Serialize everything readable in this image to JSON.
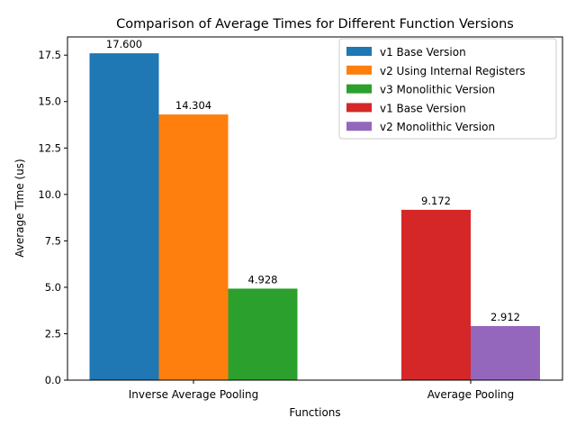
{
  "chart_data": {
    "type": "bar",
    "title": "Comparison of Average Times for Different Function Versions",
    "xlabel": "Functions",
    "ylabel": "Average Time (us)",
    "ylim": [
      0,
      18.48
    ],
    "yticks": [
      0.0,
      2.5,
      5.0,
      7.5,
      10.0,
      12.5,
      15.0,
      17.5
    ],
    "ytick_labels": [
      "0.0",
      "2.5",
      "5.0",
      "7.5",
      "10.0",
      "12.5",
      "15.0",
      "17.5"
    ],
    "grid": false,
    "legend_position": "top-right",
    "groups": [
      {
        "name": "Inverse Average Pooling",
        "bars": [
          {
            "series": "v1 Base Version",
            "value": 17.6,
            "label": "17.600",
            "color": "#1f77b4"
          },
          {
            "series": "v2 Using Internal Registers",
            "value": 14.304,
            "label": "14.304",
            "color": "#ff7f0e"
          },
          {
            "series": "v3 Monolithic Version",
            "value": 4.928,
            "label": "4.928",
            "color": "#2ca02c"
          }
        ]
      },
      {
        "name": "Average Pooling",
        "bars": [
          {
            "series": "v1 Base Version",
            "value": 9.172,
            "label": "9.172",
            "color": "#d62728"
          },
          {
            "series": "v2 Monolithic Version",
            "value": 2.912,
            "label": "2.912",
            "color": "#9467bd"
          }
        ]
      }
    ],
    "legend": [
      {
        "name": "v1 Base Version",
        "color": "#1f77b4"
      },
      {
        "name": "v2 Using Internal Registers",
        "color": "#ff7f0e"
      },
      {
        "name": "v3 Monolithic Version",
        "color": "#2ca02c"
      },
      {
        "name": "v1 Base Version",
        "color": "#d62728"
      },
      {
        "name": "v2 Monolithic Version",
        "color": "#9467bd"
      }
    ]
  }
}
